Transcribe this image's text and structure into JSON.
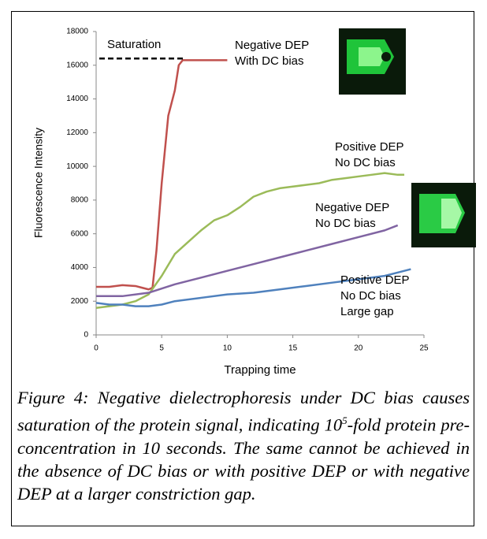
{
  "chart_data": {
    "type": "line",
    "xlabel": "Trapping time",
    "ylabel": "Fluorescence Intensity",
    "xlim": [
      0,
      25
    ],
    "xticks": [
      0,
      5,
      10,
      15,
      20,
      25
    ],
    "ylim": [
      0,
      18000
    ],
    "yticks": [
      0,
      2000,
      4000,
      6000,
      8000,
      10000,
      12000,
      14000,
      16000,
      18000
    ],
    "series": [
      {
        "color": "#c0504d",
        "x": [
          0,
          1,
          2,
          3,
          3.5,
          4,
          4.3,
          4.6,
          5,
          5.5,
          6,
          6.3,
          6.6,
          7,
          10
        ],
        "values": [
          2850,
          2850,
          2950,
          2900,
          2800,
          2700,
          2800,
          5000,
          9000,
          13000,
          14500,
          16000,
          16300,
          16300,
          16300
        ]
      },
      {
        "color": "#9bbb59",
        "x": [
          0,
          1,
          2,
          3,
          4,
          5,
          6,
          7,
          8,
          9,
          10,
          11,
          12,
          13,
          14,
          15,
          16,
          17,
          18,
          19,
          20,
          21,
          22,
          23,
          23.5
        ],
        "values": [
          1600,
          1700,
          1800,
          2000,
          2400,
          3500,
          4800,
          5500,
          6200,
          6800,
          7100,
          7600,
          8200,
          8500,
          8700,
          8800,
          8900,
          9000,
          9200,
          9300,
          9400,
          9500,
          9600,
          9500,
          9500
        ]
      },
      {
        "color": "#8064a2",
        "x": [
          0,
          2,
          4,
          6,
          8,
          10,
          12,
          14,
          16,
          18,
          20,
          22,
          23
        ],
        "values": [
          2300,
          2300,
          2500,
          3000,
          3400,
          3800,
          4200,
          4600,
          5000,
          5400,
          5800,
          6200,
          6500
        ]
      },
      {
        "color": "#4f81bd",
        "x": [
          0,
          1,
          2,
          3,
          4,
          5,
          6,
          8,
          10,
          12,
          14,
          16,
          18,
          20,
          22,
          24
        ],
        "values": [
          1900,
          1800,
          1800,
          1700,
          1700,
          1800,
          2000,
          2200,
          2400,
          2500,
          2700,
          2900,
          3100,
          3300,
          3500,
          3900
        ]
      }
    ],
    "saturation": {
      "label": "Saturation",
      "value": 16400
    },
    "annotations": [
      {
        "lines": [
          "Negative DEP",
          "With DC bias"
        ]
      },
      {
        "lines": [
          "Positive DEP",
          "No DC bias"
        ]
      },
      {
        "lines": [
          "Negative DEP",
          "No DC bias"
        ]
      },
      {
        "lines": [
          "Positive DEP",
          "No DC bias",
          "Large gap"
        ]
      }
    ]
  },
  "caption": {
    "before": "Figure 4: Negative dielectrophoresis under DC bias causes saturation of the protein signal, indicating 10",
    "superscript": "5",
    "after": "-fold protein pre-concentration in 10 seconds. The same cannot be achieved in the absence of DC bias or with positive DEP or with negative DEP at a larger constriction gap."
  }
}
